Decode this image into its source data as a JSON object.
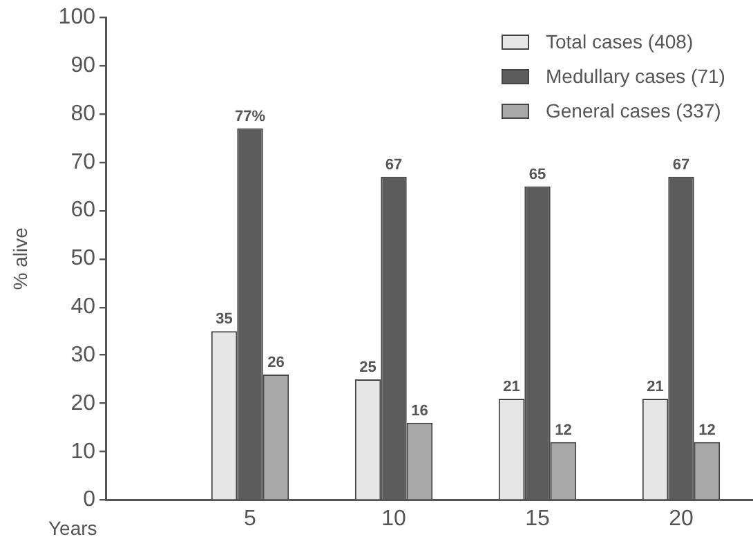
{
  "chart_data": {
    "type": "bar",
    "xlabel": "Years",
    "ylabel": "% alive",
    "categories": [
      "5",
      "10",
      "15",
      "20"
    ],
    "series": [
      {
        "name": "Total cases (408)",
        "color": "#e6e6e6",
        "values": [
          35,
          25,
          21,
          21
        ],
        "value_labels": [
          "35",
          "25",
          "21",
          "21"
        ]
      },
      {
        "name": "Medullary cases (71)",
        "color": "#5c5c5c",
        "values": [
          77,
          67,
          65,
          67
        ],
        "value_labels": [
          "77%",
          "67",
          "65",
          "67"
        ]
      },
      {
        "name": "General cases (337)",
        "color": "#a8a8a8",
        "values": [
          26,
          16,
          12,
          12
        ],
        "value_labels": [
          "26",
          "16",
          "12",
          "12"
        ]
      }
    ],
    "ylim": [
      0,
      100
    ],
    "yticks": [
      0,
      10,
      20,
      30,
      40,
      50,
      60,
      70,
      80,
      90,
      100
    ],
    "legend": "top right"
  }
}
